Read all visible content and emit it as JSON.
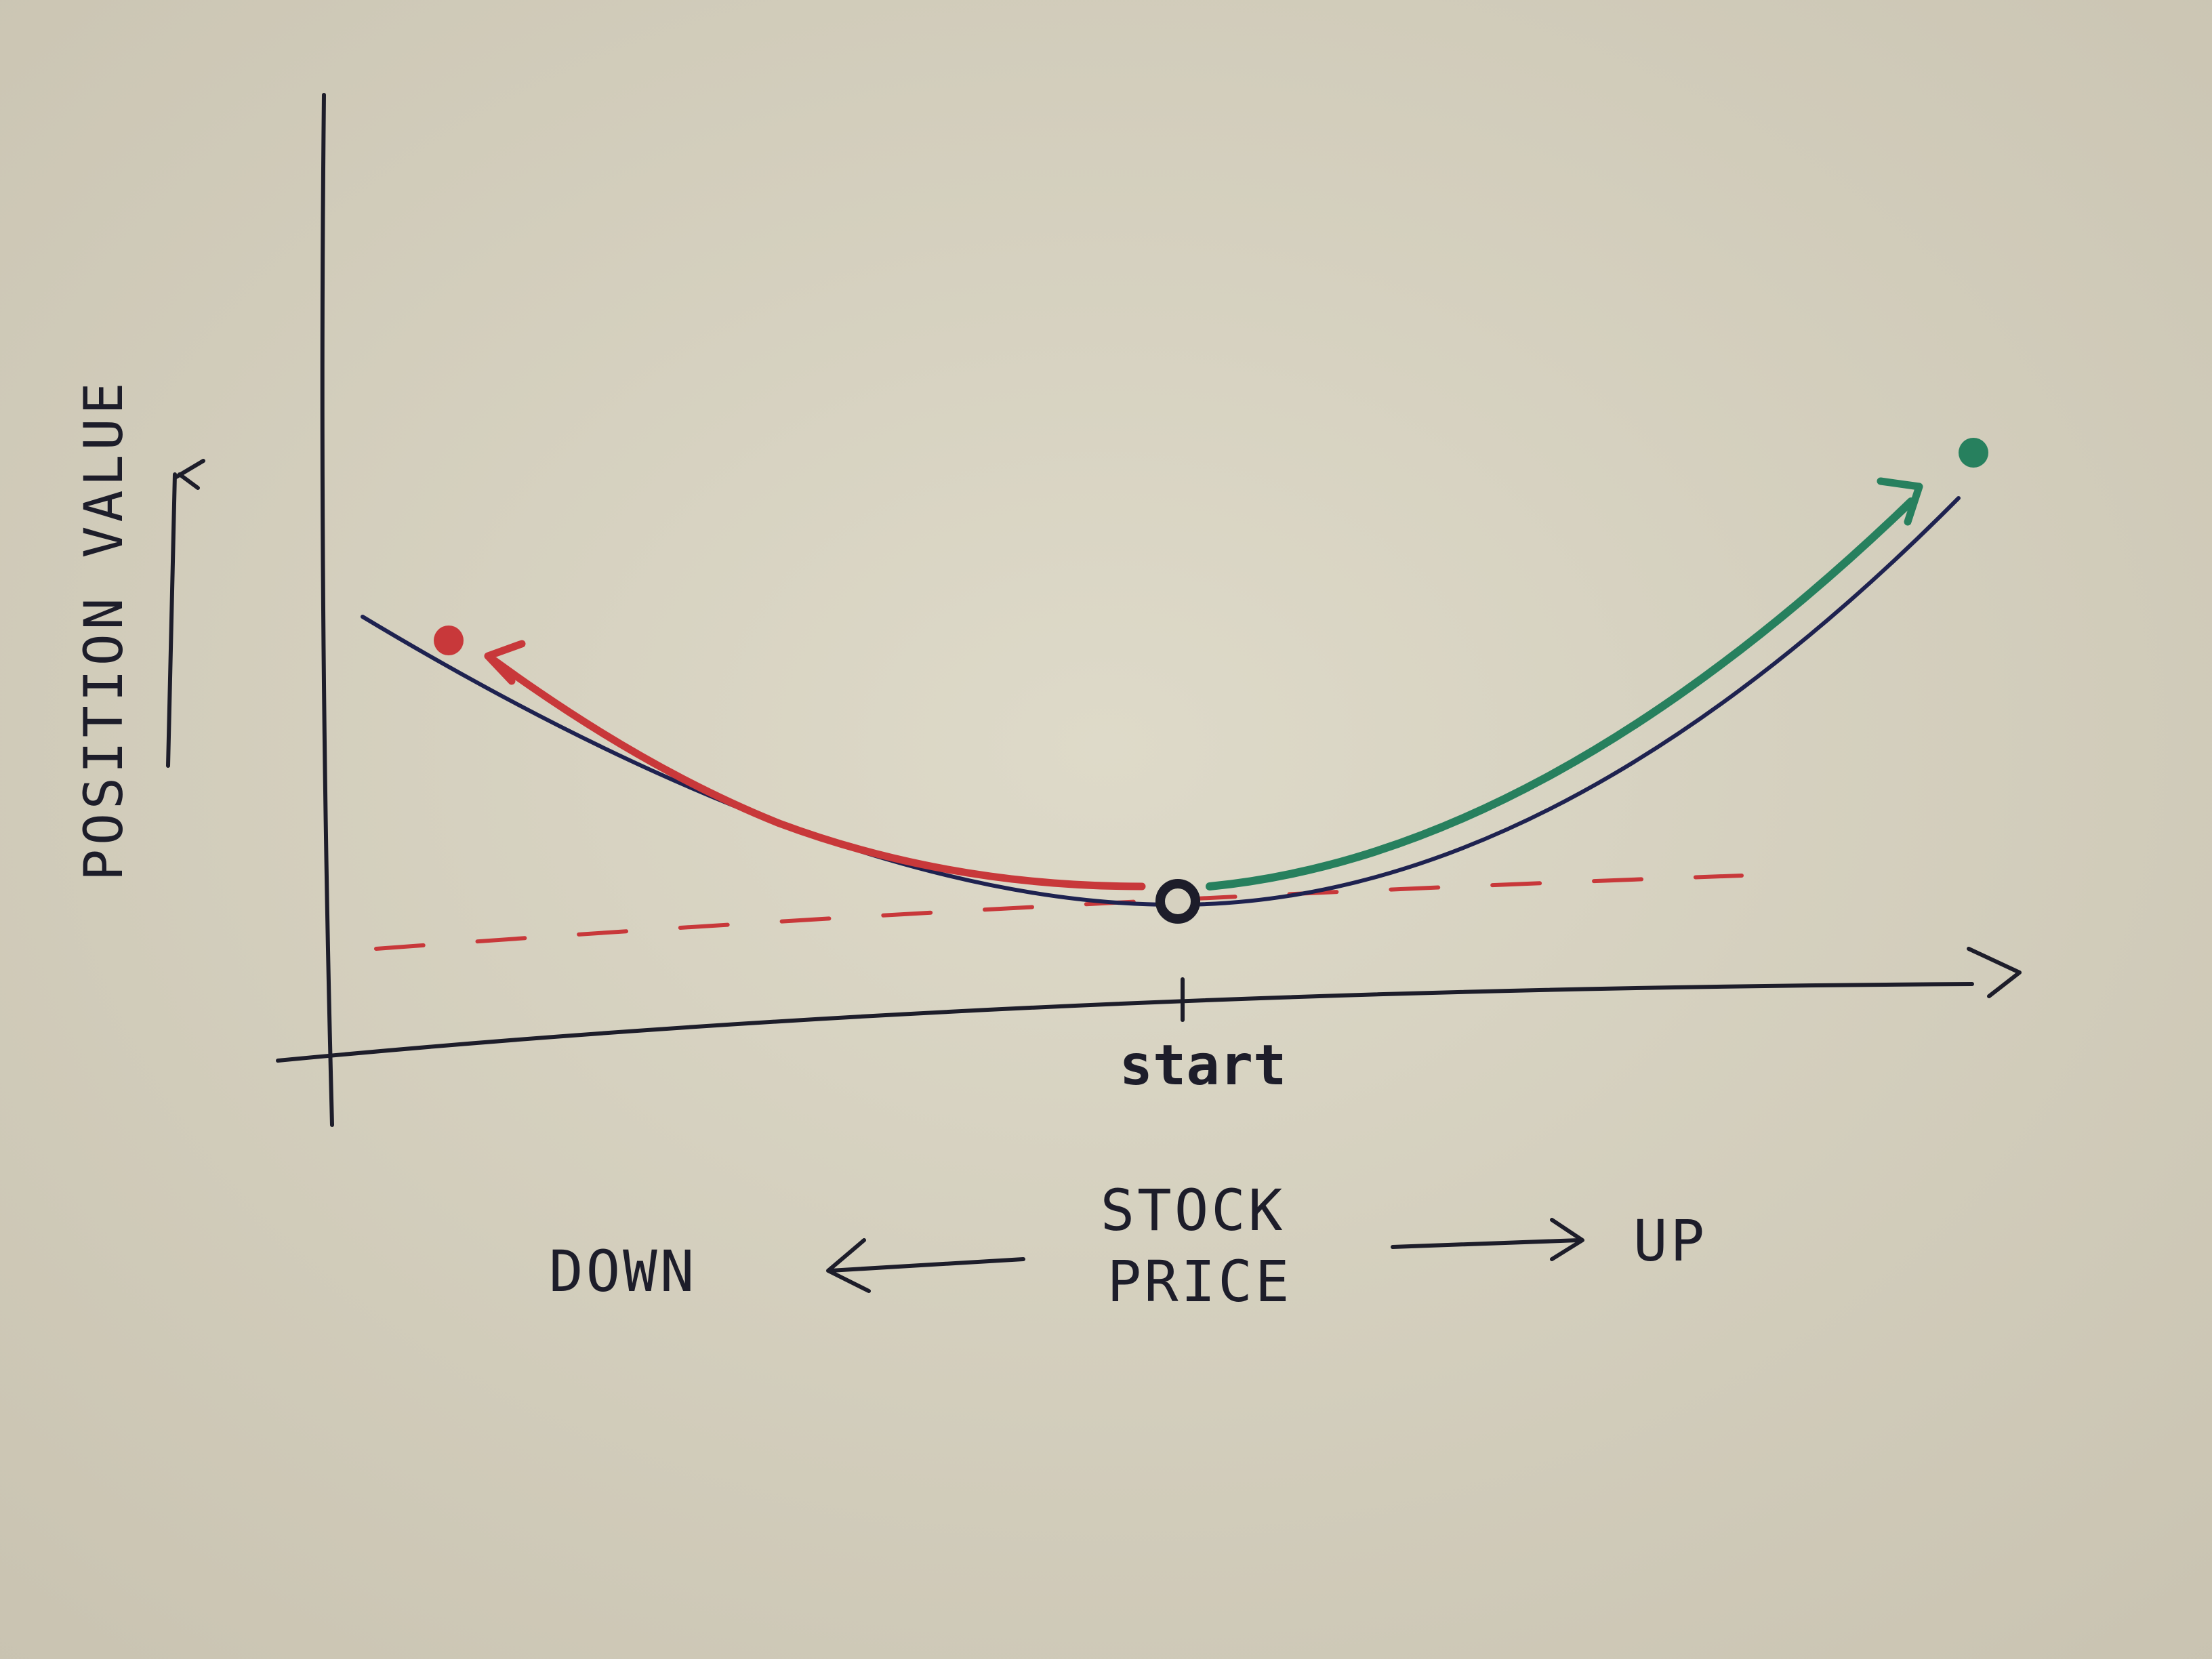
{
  "colors": {
    "paper": "#d6d1c0",
    "ink": "#1d1d2a",
    "payoff_curve": "#1e2250",
    "down_path": "#c8383a",
    "up_path": "#27805e",
    "baseline_dashed": "#c8383a"
  },
  "labels": {
    "y_axis": "POSITION VALUE",
    "x_axis_line1": "STOCK",
    "x_axis_line2": "PRICE",
    "down": "DOWN",
    "up": "UP",
    "start_tick": "start"
  },
  "icons": {
    "y_axis_arrow": "arrow-up-icon",
    "down_arrow": "arrow-left-icon",
    "up_arrow": "arrow-right-icon",
    "x_axis_arrow": "arrow-right-icon"
  }
}
